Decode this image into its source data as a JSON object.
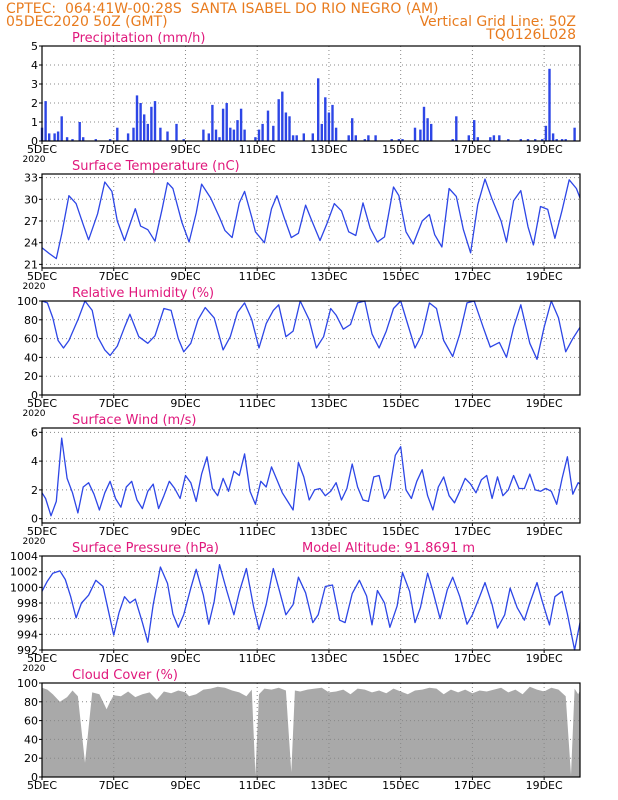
{
  "header": {
    "line1_left": "CPTEC:  064:41W-00:28S  SANTA ISABEL DO RIO NEGRO (AM)",
    "line2_left": "05DEC2020 50Z (GMT)",
    "line2_right": "Vertical Grid Line: 50Z",
    "line3_right": "TQ0126L028"
  },
  "colors": {
    "header": "#e87b1e",
    "title": "#e0187c",
    "series": "#2d46e6",
    "cloud": "#a9a9a9",
    "grid": "#888888"
  },
  "x_axis": {
    "start_day": 5,
    "end_day": 20.0,
    "tick_labels": [
      "5DEC",
      "7DEC",
      "9DEC",
      "11DEC",
      "13DEC",
      "15DEC",
      "17DEC",
      "19DEC"
    ],
    "tick_days": [
      5,
      7,
      9,
      11,
      13,
      15,
      17,
      19
    ],
    "corner_label": "2020"
  },
  "chart_data": [
    {
      "id": "precip",
      "type": "bar",
      "title": "Precipitation (mm/h)",
      "ylim": [
        0,
        5
      ],
      "yticks": [
        0,
        1,
        2,
        3,
        4,
        5
      ],
      "x_unit": "day of December 2020",
      "x": [
        5.0,
        5.1,
        5.2,
        5.35,
        5.45,
        5.55,
        5.7,
        5.85,
        6.05,
        6.15,
        6.5,
        6.9,
        7.1,
        7.4,
        7.55,
        7.65,
        7.75,
        7.85,
        7.95,
        8.05,
        8.15,
        8.3,
        8.5,
        8.75,
        8.95,
        9.5,
        9.65,
        9.75,
        9.85,
        9.95,
        10.05,
        10.15,
        10.25,
        10.35,
        10.45,
        10.55,
        10.65,
        10.95,
        11.05,
        11.15,
        11.3,
        11.45,
        11.6,
        11.7,
        11.8,
        11.9,
        12.0,
        12.1,
        12.3,
        12.55,
        12.7,
        12.8,
        12.9,
        13.0,
        13.1,
        13.2,
        13.55,
        13.65,
        13.75,
        14.0,
        14.1,
        14.3,
        14.75,
        14.95,
        15.05,
        15.4,
        15.55,
        15.65,
        15.75,
        15.85,
        16.45,
        16.55,
        16.9,
        17.05,
        17.15,
        17.5,
        17.6,
        17.75,
        18.0,
        18.35,
        18.55,
        18.75,
        18.95,
        19.05,
        19.15,
        19.25,
        19.35,
        19.5,
        19.6,
        19.85
      ],
      "values": [
        0.7,
        2.1,
        0.4,
        0.4,
        0.5,
        1.3,
        0.2,
        0.1,
        1.0,
        0.2,
        0.1,
        0.1,
        0.7,
        0.4,
        0.7,
        2.4,
        2.0,
        1.4,
        0.9,
        1.8,
        2.1,
        0.7,
        0.5,
        0.9,
        0.1,
        0.6,
        0.4,
        1.9,
        0.6,
        0.2,
        1.7,
        2.0,
        0.7,
        0.6,
        1.1,
        1.7,
        0.6,
        0.2,
        0.6,
        0.9,
        1.6,
        0.8,
        2.2,
        2.6,
        1.5,
        1.3,
        0.3,
        0.3,
        0.4,
        0.4,
        3.3,
        0.9,
        2.3,
        1.5,
        1.9,
        0.7,
        0.3,
        1.2,
        0.3,
        0.1,
        0.3,
        0.3,
        0.1,
        0.1,
        0.1,
        0.7,
        0.6,
        1.8,
        1.2,
        0.9,
        0.1,
        1.3,
        0.3,
        1.1,
        0.2,
        0.2,
        0.3,
        0.3,
        0.1,
        0.1,
        0.1,
        0.1,
        0.1,
        0.8,
        3.8,
        0.4,
        0.1,
        0.1,
        0.1,
        0.7
      ]
    },
    {
      "id": "temp",
      "type": "line",
      "title": "Surface Temperature (nC)",
      "ylim": [
        20.5,
        33.5
      ],
      "yticks": [
        21,
        24,
        27,
        30,
        33
      ],
      "x": [
        5.0,
        5.2,
        5.4,
        5.55,
        5.75,
        5.95,
        6.15,
        6.3,
        6.55,
        6.75,
        6.95,
        7.1,
        7.3,
        7.45,
        7.6,
        7.75,
        7.95,
        8.15,
        8.35,
        8.5,
        8.65,
        8.9,
        9.1,
        9.3,
        9.45,
        9.7,
        9.95,
        10.1,
        10.3,
        10.5,
        10.65,
        10.85,
        10.95,
        11.2,
        11.4,
        11.55,
        11.75,
        11.95,
        12.15,
        12.35,
        12.5,
        12.75,
        12.95,
        13.15,
        13.35,
        13.55,
        13.75,
        13.95,
        14.15,
        14.35,
        14.55,
        14.8,
        14.95,
        15.15,
        15.35,
        15.6,
        15.8,
        15.95,
        16.15,
        16.35,
        16.55,
        16.75,
        16.95,
        17.15,
        17.35,
        17.55,
        17.8,
        17.95,
        18.15,
        18.35,
        18.55,
        18.7,
        18.9,
        19.1,
        19.3,
        19.5,
        19.7,
        19.9,
        20.0
      ],
      "values": [
        23.3,
        22.5,
        21.8,
        25.2,
        30.5,
        29.4,
        26.5,
        24.4,
        28.0,
        32.4,
        31.1,
        27.0,
        24.3,
        26.5,
        28.7,
        26.3,
        25.8,
        24.2,
        28.7,
        32.3,
        31.5,
        26.8,
        24.1,
        28.1,
        32.1,
        30.2,
        27.5,
        25.7,
        24.7,
        29.5,
        31.1,
        27.5,
        25.5,
        24.0,
        28.7,
        30.5,
        27.5,
        24.7,
        25.3,
        29.2,
        27.3,
        24.3,
        26.7,
        29.4,
        28.4,
        25.5,
        25.0,
        29.5,
        26.0,
        24.1,
        24.8,
        31.7,
        30.5,
        25.5,
        23.8,
        27.0,
        27.9,
        25.1,
        23.4,
        31.5,
        30.4,
        25.8,
        22.6,
        29.3,
        32.8,
        30.0,
        27.0,
        24.1,
        29.8,
        31.2,
        26.2,
        23.7,
        29.0,
        28.6,
        24.6,
        28.5,
        32.7,
        31.5,
        30.2
      ]
    },
    {
      "id": "rh",
      "type": "line",
      "title": "Relative Humidity (%)",
      "ylim": [
        0,
        100
      ],
      "yticks": [
        0,
        20,
        40,
        60,
        80,
        100
      ],
      "x": [
        5.0,
        5.15,
        5.3,
        5.45,
        5.6,
        5.75,
        6.0,
        6.2,
        6.4,
        6.55,
        6.75,
        6.9,
        7.1,
        7.3,
        7.45,
        7.7,
        7.95,
        8.15,
        8.4,
        8.6,
        8.8,
        8.95,
        9.15,
        9.35,
        9.55,
        9.8,
        10.05,
        10.25,
        10.45,
        10.65,
        10.85,
        11.05,
        11.25,
        11.45,
        11.6,
        11.8,
        12.0,
        12.2,
        12.45,
        12.65,
        12.85,
        13.05,
        13.2,
        13.4,
        13.6,
        13.8,
        14.0,
        14.2,
        14.4,
        14.6,
        14.8,
        15.0,
        15.2,
        15.4,
        15.6,
        15.8,
        16.0,
        16.2,
        16.45,
        16.65,
        16.85,
        17.05,
        17.3,
        17.5,
        17.75,
        17.95,
        18.15,
        18.35,
        18.6,
        18.8,
        19.0,
        19.2,
        19.4,
        19.6,
        19.8,
        20.0
      ],
      "values": [
        100,
        98,
        82,
        58,
        50,
        58,
        80,
        100,
        90,
        62,
        48,
        42,
        52,
        72,
        86,
        62,
        55,
        63,
        92,
        90,
        60,
        46,
        55,
        80,
        93,
        82,
        48,
        62,
        88,
        98,
        80,
        50,
        76,
        90,
        96,
        62,
        68,
        100,
        80,
        50,
        62,
        92,
        85,
        70,
        75,
        98,
        100,
        65,
        50,
        68,
        92,
        100,
        75,
        50,
        65,
        98,
        92,
        58,
        41,
        65,
        98,
        100,
        72,
        51,
        56,
        40,
        72,
        96,
        55,
        38,
        72,
        100,
        82,
        46,
        60,
        72
      ]
    },
    {
      "id": "wind",
      "type": "line",
      "title": "Surface Wind (m/s)",
      "ylim": [
        -0.3,
        6.3
      ],
      "yticks": [
        0,
        2,
        4,
        6
      ],
      "x": [
        5.0,
        5.1,
        5.25,
        5.4,
        5.55,
        5.7,
        5.85,
        6.0,
        6.15,
        6.3,
        6.45,
        6.6,
        6.75,
        6.9,
        7.05,
        7.2,
        7.35,
        7.5,
        7.65,
        7.8,
        7.95,
        8.1,
        8.25,
        8.4,
        8.55,
        8.7,
        8.85,
        9.0,
        9.15,
        9.3,
        9.45,
        9.6,
        9.75,
        9.9,
        10.05,
        10.2,
        10.35,
        10.5,
        10.65,
        10.8,
        10.95,
        11.1,
        11.25,
        11.4,
        11.55,
        11.7,
        11.85,
        12.0,
        12.15,
        12.3,
        12.45,
        12.6,
        12.75,
        12.9,
        13.05,
        13.2,
        13.35,
        13.5,
        13.65,
        13.8,
        13.95,
        14.1,
        14.25,
        14.4,
        14.55,
        14.7,
        14.85,
        15.0,
        15.15,
        15.3,
        15.45,
        15.6,
        15.75,
        15.9,
        16.05,
        16.2,
        16.35,
        16.5,
        16.65,
        16.8,
        16.95,
        17.1,
        17.25,
        17.4,
        17.55,
        17.7,
        17.85,
        18.0,
        18.15,
        18.3,
        18.45,
        18.6,
        18.75,
        18.9,
        19.05,
        19.2,
        19.35,
        19.5,
        19.65,
        19.8,
        19.95,
        20.0
      ],
      "values": [
        1.8,
        1.4,
        0.2,
        1.2,
        5.6,
        2.8,
        1.8,
        0.4,
        2.2,
        2.5,
        1.7,
        0.6,
        1.8,
        2.6,
        1.4,
        0.8,
        2.2,
        2.6,
        1.3,
        0.7,
        1.9,
        2.4,
        0.7,
        1.6,
        2.6,
        2.1,
        1.4,
        3.0,
        2.5,
        1.2,
        3.1,
        4.3,
        2.1,
        1.6,
        2.8,
        1.9,
        3.3,
        3.0,
        4.5,
        1.9,
        1.0,
        2.6,
        2.2,
        3.6,
        2.7,
        1.8,
        1.2,
        0.6,
        3.9,
        2.9,
        1.3,
        2.0,
        2.1,
        1.6,
        1.9,
        2.5,
        1.3,
        2.1,
        3.8,
        2.2,
        1.3,
        1.2,
        2.9,
        3.0,
        1.4,
        2.1,
        4.4,
        5.0,
        2.0,
        1.4,
        2.6,
        3.4,
        1.6,
        0.6,
        2.2,
        2.9,
        1.6,
        1.1,
        1.9,
        2.8,
        2.4,
        1.8,
        2.7,
        3.0,
        1.4,
        2.9,
        1.6,
        2.0,
        3.0,
        2.1,
        2.1,
        3.1,
        2.0,
        1.9,
        2.1,
        1.9,
        1.0,
        2.8,
        4.3,
        1.7,
        2.5,
        2.4
      ]
    },
    {
      "id": "pressure",
      "type": "line",
      "title": "Surface Pressure (hPa)",
      "annotation": "Model Altitude: 91.8691 m",
      "ylim": [
        992,
        1004
      ],
      "yticks": [
        992,
        994,
        996,
        998,
        1000,
        1002,
        1004
      ],
      "x": [
        5.0,
        5.15,
        5.3,
        5.5,
        5.65,
        5.8,
        5.95,
        6.1,
        6.3,
        6.5,
        6.7,
        6.85,
        7.0,
        7.15,
        7.3,
        7.45,
        7.6,
        7.8,
        7.95,
        8.1,
        8.3,
        8.5,
        8.65,
        8.8,
        8.95,
        9.15,
        9.3,
        9.5,
        9.65,
        9.8,
        9.95,
        10.15,
        10.35,
        10.5,
        10.7,
        10.9,
        11.05,
        11.25,
        11.45,
        11.6,
        11.8,
        12.0,
        12.15,
        12.35,
        12.55,
        12.7,
        12.9,
        13.1,
        13.3,
        13.45,
        13.65,
        13.85,
        14.05,
        14.2,
        14.35,
        14.55,
        14.7,
        14.9,
        15.05,
        15.25,
        15.4,
        15.55,
        15.75,
        15.9,
        16.1,
        16.3,
        16.45,
        16.65,
        16.85,
        17.0,
        17.2,
        17.35,
        17.55,
        17.7,
        17.9,
        18.05,
        18.25,
        18.45,
        18.6,
        18.8,
        18.95,
        19.15,
        19.3,
        19.5,
        19.65,
        19.85,
        20.0
      ],
      "values": [
        999.5,
        1000.8,
        1001.8,
        1002.1,
        1001.0,
        998.8,
        996.1,
        998.0,
        999.0,
        1000.9,
        1000.1,
        997.0,
        993.9,
        996.8,
        998.8,
        998.0,
        998.5,
        995.5,
        993.0,
        997.8,
        1002.6,
        1000.5,
        996.6,
        994.9,
        996.5,
        999.9,
        1002.3,
        999.0,
        995.3,
        998.2,
        1002.9,
        999.6,
        996.5,
        999.4,
        1002.4,
        997.5,
        994.6,
        997.8,
        1002.4,
        999.9,
        996.5,
        997.8,
        1001.3,
        999.3,
        995.5,
        996.5,
        1000.1,
        1000.3,
        995.8,
        995.5,
        999.2,
        1000.9,
        998.9,
        995.2,
        999.6,
        998.0,
        994.9,
        997.6,
        1001.9,
        999.5,
        995.5,
        997.4,
        1001.8,
        999.5,
        996.0,
        999.7,
        1001.3,
        998.8,
        995.3,
        996.5,
        998.8,
        1000.6,
        997.8,
        994.8,
        996.5,
        999.9,
        997.4,
        995.8,
        998.0,
        1000.6,
        998.2,
        995.2,
        998.8,
        999.5,
        996.6,
        992.0,
        995.5
      ]
    },
    {
      "id": "cloud",
      "type": "area",
      "title": "Cloud Cover (%)",
      "ylim": [
        0,
        100
      ],
      "yticks": [
        0,
        20,
        40,
        60,
        80,
        100
      ],
      "x": [
        5.0,
        5.15,
        5.3,
        5.5,
        5.7,
        5.85,
        6.0,
        6.2,
        6.4,
        6.6,
        6.8,
        6.9,
        7.0,
        7.2,
        7.4,
        7.6,
        7.8,
        8.0,
        8.2,
        8.4,
        8.6,
        8.8,
        9.0,
        9.1,
        9.3,
        9.5,
        9.7,
        9.9,
        10.1,
        10.3,
        10.5,
        10.7,
        10.85,
        10.95,
        11.05,
        11.2,
        11.4,
        11.6,
        11.8,
        11.95,
        12.05,
        12.2,
        12.4,
        12.6,
        12.8,
        13.0,
        13.2,
        13.4,
        13.6,
        13.8,
        14.0,
        14.2,
        14.4,
        14.6,
        14.8,
        15.0,
        15.2,
        15.4,
        15.6,
        15.8,
        16.0,
        16.2,
        16.4,
        16.6,
        16.8,
        17.0,
        17.2,
        17.4,
        17.6,
        17.8,
        18.0,
        18.2,
        18.4,
        18.6,
        18.8,
        19.0,
        19.2,
        19.4,
        19.6,
        19.75,
        19.85,
        19.95,
        20.0
      ],
      "values": [
        95,
        93,
        88,
        80,
        85,
        92,
        86,
        15,
        90,
        88,
        72,
        80,
        87,
        86,
        91,
        85,
        88,
        90,
        82,
        91,
        89,
        92,
        90,
        86,
        88,
        93,
        94,
        96,
        95,
        92,
        90,
        86,
        93,
        2,
        88,
        94,
        93,
        95,
        92,
        5,
        92,
        91,
        93,
        94,
        95,
        90,
        91,
        93,
        88,
        94,
        93,
        90,
        92,
        89,
        94,
        91,
        88,
        92,
        93,
        95,
        94,
        88,
        93,
        90,
        93,
        89,
        92,
        91,
        93,
        95,
        90,
        93,
        88,
        96,
        93,
        91,
        95,
        93,
        86,
        2,
        94,
        88,
        92
      ]
    }
  ]
}
